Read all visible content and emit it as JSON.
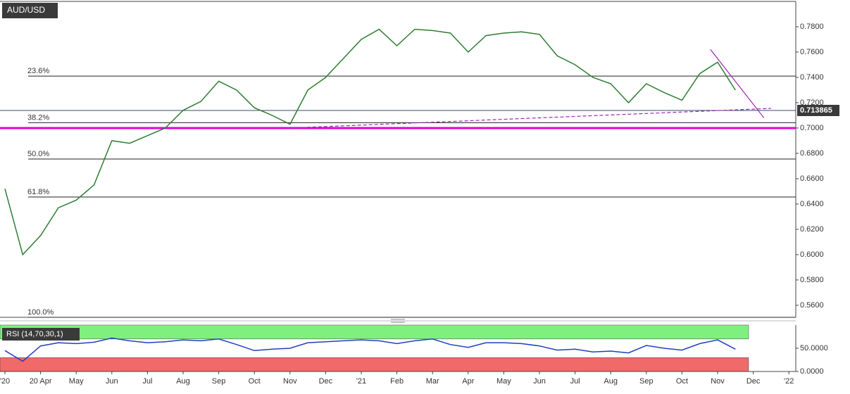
{
  "chart_data": {
    "type": "line",
    "title": "AUD/USD",
    "categories": [
      "'20",
      null,
      "20 Apr",
      null,
      "May",
      null,
      "Jun",
      null,
      "Jul",
      null,
      "Aug",
      null,
      "Sep",
      null,
      "Oct",
      null,
      "Nov",
      null,
      "Dec",
      null,
      "'21",
      null,
      "Feb",
      null,
      "Mar",
      null,
      "Apr",
      null,
      "May",
      null,
      "Jun",
      null,
      "Jul",
      null,
      "Aug",
      null,
      "Sep",
      null,
      "Oct",
      null,
      "Nov",
      null,
      "Dec",
      null,
      "'22"
    ],
    "values": [
      0.652,
      0.6,
      0.615,
      0.637,
      0.643,
      0.655,
      0.69,
      0.688,
      0.694,
      0.7,
      0.714,
      0.721,
      0.737,
      0.73,
      0.716,
      0.71,
      0.703,
      0.73,
      0.74,
      0.755,
      0.77,
      0.778,
      0.765,
      0.778,
      0.777,
      0.775,
      0.76,
      0.773,
      0.775,
      0.776,
      0.774,
      0.757,
      0.75,
      0.74,
      0.735,
      0.72,
      0.735,
      0.728,
      0.722,
      0.743,
      0.752,
      0.73,
      null,
      null,
      null
    ],
    "color": "#2e7d32",
    "ylim": [
      0.5505,
      0.8
    ],
    "yticks": [
      {
        "value": 0.56,
        "label": "0.5600"
      },
      {
        "value": 0.58,
        "label": "0.5800"
      },
      {
        "value": 0.6,
        "label": "0.6000"
      },
      {
        "value": 0.62,
        "label": "0.6200"
      },
      {
        "value": 0.64,
        "label": "0.6400"
      },
      {
        "value": 0.66,
        "label": "0.6600"
      },
      {
        "value": 0.68,
        "label": "0.6800"
      },
      {
        "value": 0.7,
        "label": "0.7000"
      },
      {
        "value": 0.72,
        "label": "0.7200"
      },
      {
        "value": 0.74,
        "label": "0.7400"
      },
      {
        "value": 0.76,
        "label": "0.7600"
      },
      {
        "value": 0.78,
        "label": "0.7800"
      }
    ],
    "last_price": 0.713865,
    "support_level": 0.7,
    "fib_levels": [
      {
        "label": "23.6%",
        "value": 0.741
      },
      {
        "label": "38.2%",
        "value": 0.7042
      },
      {
        "label": "50.0%",
        "value": 0.6755
      },
      {
        "label": "61.8%",
        "value": 0.6455
      },
      {
        "label": "100.0%",
        "value": 0.5505
      }
    ],
    "trendlines": [
      {
        "x": [
          16,
          43
        ],
        "y": [
          0.7,
          0.7155
        ],
        "color": "#9c27b0",
        "dashed": true
      },
      {
        "x": [
          39.6,
          42.6
        ],
        "y": [
          0.762,
          0.708
        ],
        "color": "#9c27b0",
        "dashed": false
      }
    ],
    "rsi": {
      "label": "RSI (14,70,30,1)",
      "values": [
        45,
        22,
        55,
        62,
        60,
        63,
        72,
        66,
        62,
        64,
        68,
        66,
        70,
        58,
        45,
        48,
        50,
        62,
        64,
        66,
        68,
        66,
        60,
        66,
        70,
        58,
        52,
        62,
        62,
        60,
        55,
        46,
        48,
        42,
        44,
        40,
        56,
        50,
        46,
        60,
        68,
        48,
        null,
        null,
        null
      ],
      "color": "#1f3fbf",
      "ylim": [
        0,
        100
      ],
      "yticks": [
        {
          "value": 50,
          "label": "50.0000"
        },
        {
          "value": 0,
          "label": "0.0000"
        }
      ],
      "overbought": 70,
      "oversold": 30
    }
  }
}
